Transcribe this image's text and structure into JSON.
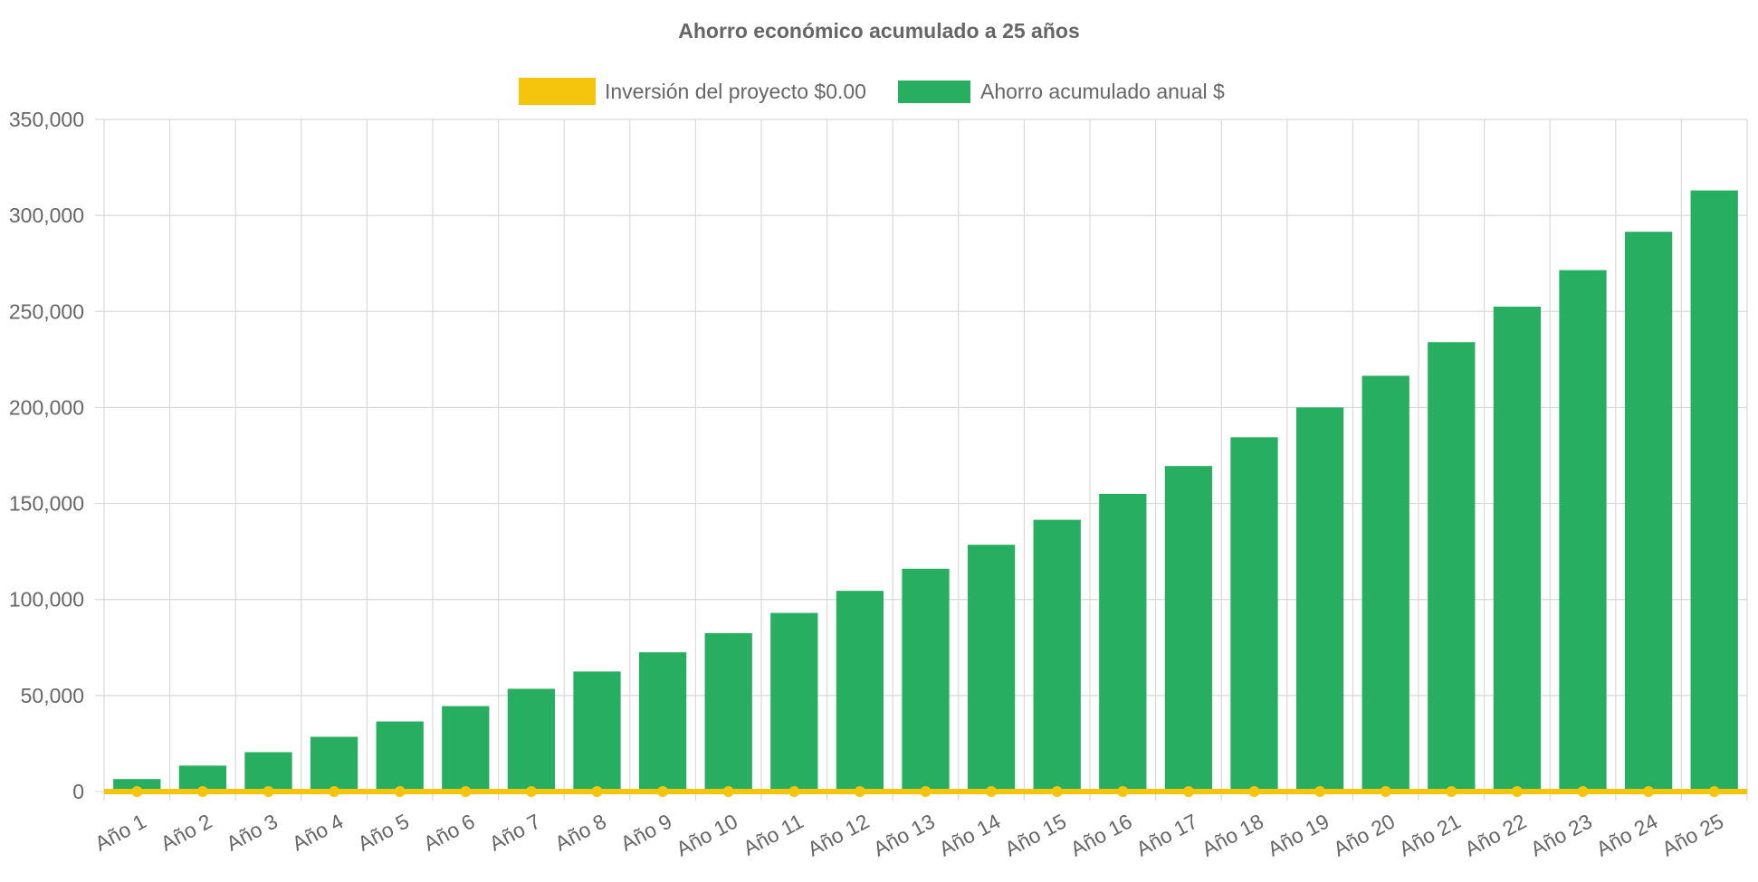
{
  "chart_data": {
    "type": "bar",
    "title": "Ahorro económico acumulado a 25 años",
    "legend_position": "top",
    "grid": true,
    "ylim": [
      0,
      350000
    ],
    "y_ticks": [
      "0",
      "50,000",
      "100,000",
      "150,000",
      "200,000",
      "250,000",
      "300,000",
      "350,000"
    ],
    "categories": [
      "Año 1",
      "Año 2",
      "Año 3",
      "Año 4",
      "Año 5",
      "Año 6",
      "Año 7",
      "Año 8",
      "Año 9",
      "Año 10",
      "Año 11",
      "Año 12",
      "Año 13",
      "Año 14",
      "Año 15",
      "Año 16",
      "Año 17",
      "Año 18",
      "Año 19",
      "Año 20",
      "Año 21",
      "Año 22",
      "Año 23",
      "Año 24",
      "Año 25"
    ],
    "series": [
      {
        "name": "Inversión del proyecto $0.00",
        "type": "line",
        "color": "#f5c40c",
        "values": [
          0,
          0,
          0,
          0,
          0,
          0,
          0,
          0,
          0,
          0,
          0,
          0,
          0,
          0,
          0,
          0,
          0,
          0,
          0,
          0,
          0,
          0,
          0,
          0,
          0
        ]
      },
      {
        "name": "Ahorro acumulado anual $",
        "type": "bar",
        "color": "#28ae60",
        "values": [
          6500,
          13500,
          20500,
          28500,
          36500,
          44500,
          53500,
          62500,
          72500,
          82500,
          93000,
          104500,
          116000,
          128500,
          141500,
          155000,
          169500,
          184500,
          200000,
          216500,
          234000,
          252500,
          271500,
          291500,
          313000
        ]
      }
    ]
  }
}
